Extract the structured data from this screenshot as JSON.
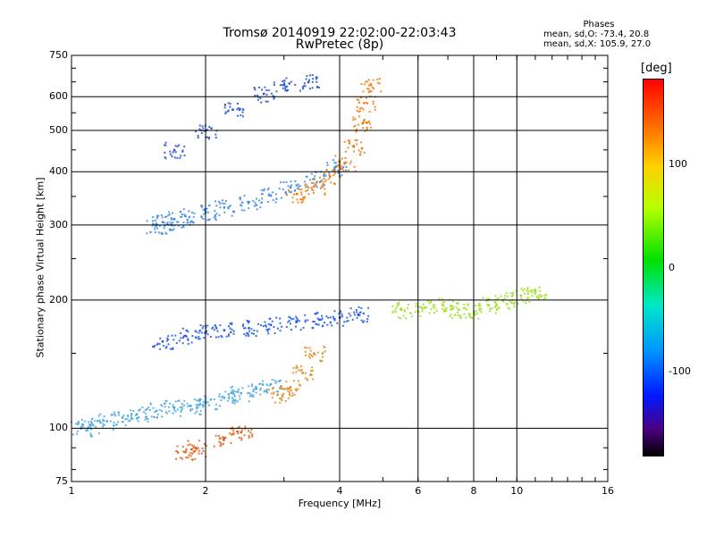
{
  "header": {
    "title_line1": "Tromsø 20140919 22:02:00-22:03:43",
    "title_line2": "RwPretec (8p)"
  },
  "stats": {
    "heading": "Phases",
    "line_o": "mean, sd,O: -73.4, 20.8",
    "line_x": "mean, sd,X: 105.9, 27.0"
  },
  "colorbar": {
    "unit_label": "[deg]",
    "ticks": [
      "100",
      "0",
      "-100"
    ]
  },
  "chart_data": {
    "type": "scatter",
    "title": "Tromsø 20140919 22:02:00-22:03:43",
    "subtitle": "RwPretec (8p)",
    "xlabel": "Frequency [MHz]",
    "ylabel": "Stationary phase Virtual Height [km]",
    "x_scale": "log",
    "y_scale": "log",
    "xlim": [
      1,
      16
    ],
    "ylim": [
      75,
      750
    ],
    "x_ticks": [
      "1",
      "2",
      "4",
      "6",
      "8",
      "10",
      "16"
    ],
    "y_ticks": [
      "75",
      "100",
      "200",
      "300",
      "400",
      "500",
      "600",
      "750"
    ],
    "colorbar_range": [
      -180,
      180
    ],
    "series": [
      {
        "name": "",
        "color": "#4aa8e0",
        "phase": -60,
        "x": [
          1.05,
          1.1,
          1.2,
          1.3,
          1.4,
          1.55,
          1.7,
          1.85,
          2.0,
          2.2,
          2.4,
          2.6,
          2.8
        ],
        "y": [
          100,
          102,
          104,
          106,
          108,
          110,
          112,
          113,
          115,
          118,
          121,
          124,
          127
        ]
      },
      {
        "name": "",
        "color": "#1a55e8",
        "phase": -95,
        "x": [
          1.6,
          1.8,
          2.0,
          2.2,
          2.5,
          2.8,
          3.2,
          3.6,
          4.0,
          4.4
        ],
        "y": [
          160,
          165,
          168,
          170,
          172,
          175,
          178,
          180,
          182,
          185
        ]
      },
      {
        "name": "",
        "color": "#3c8ce6",
        "phase": -75,
        "x": [
          1.55,
          1.6,
          1.7,
          1.8,
          2.0,
          2.2,
          2.5,
          2.8,
          3.1,
          3.5,
          3.9
        ],
        "y": [
          300,
          305,
          310,
          315,
          322,
          330,
          340,
          352,
          368,
          385,
          410
        ]
      },
      {
        "name": "",
        "color": "#2050d0",
        "phase": -100,
        "x": [
          1.7,
          2.0,
          2.3,
          2.7,
          3.0,
          3.4
        ],
        "y": [
          450,
          500,
          560,
          610,
          640,
          650
        ]
      },
      {
        "name": "",
        "color": "#f07a10",
        "phase": 130,
        "x": [
          3.2,
          3.5,
          3.8,
          4.1,
          4.3,
          4.5,
          4.6,
          4.7
        ],
        "y": [
          355,
          370,
          390,
          420,
          460,
          520,
          580,
          640
        ]
      },
      {
        "name": "",
        "color": "#e08a20",
        "phase": 120,
        "x": [
          2.9,
          3.1,
          3.3,
          3.5
        ],
        "y": [
          120,
          125,
          135,
          150
        ]
      },
      {
        "name": "",
        "color": "#e05a10",
        "phase": 150,
        "x": [
          1.8,
          1.9,
          2.2,
          2.4
        ],
        "y": [
          88,
          90,
          95,
          98
        ]
      },
      {
        "name": "",
        "color": "#9be020",
        "phase": 40,
        "x": [
          5.5,
          6.2,
          6.8,
          7.4,
          8.0,
          8.6,
          9.3,
          10.2,
          11.0
        ],
        "y": [
          190,
          192,
          195,
          190,
          188,
          195,
          200,
          205,
          210
        ]
      }
    ]
  }
}
